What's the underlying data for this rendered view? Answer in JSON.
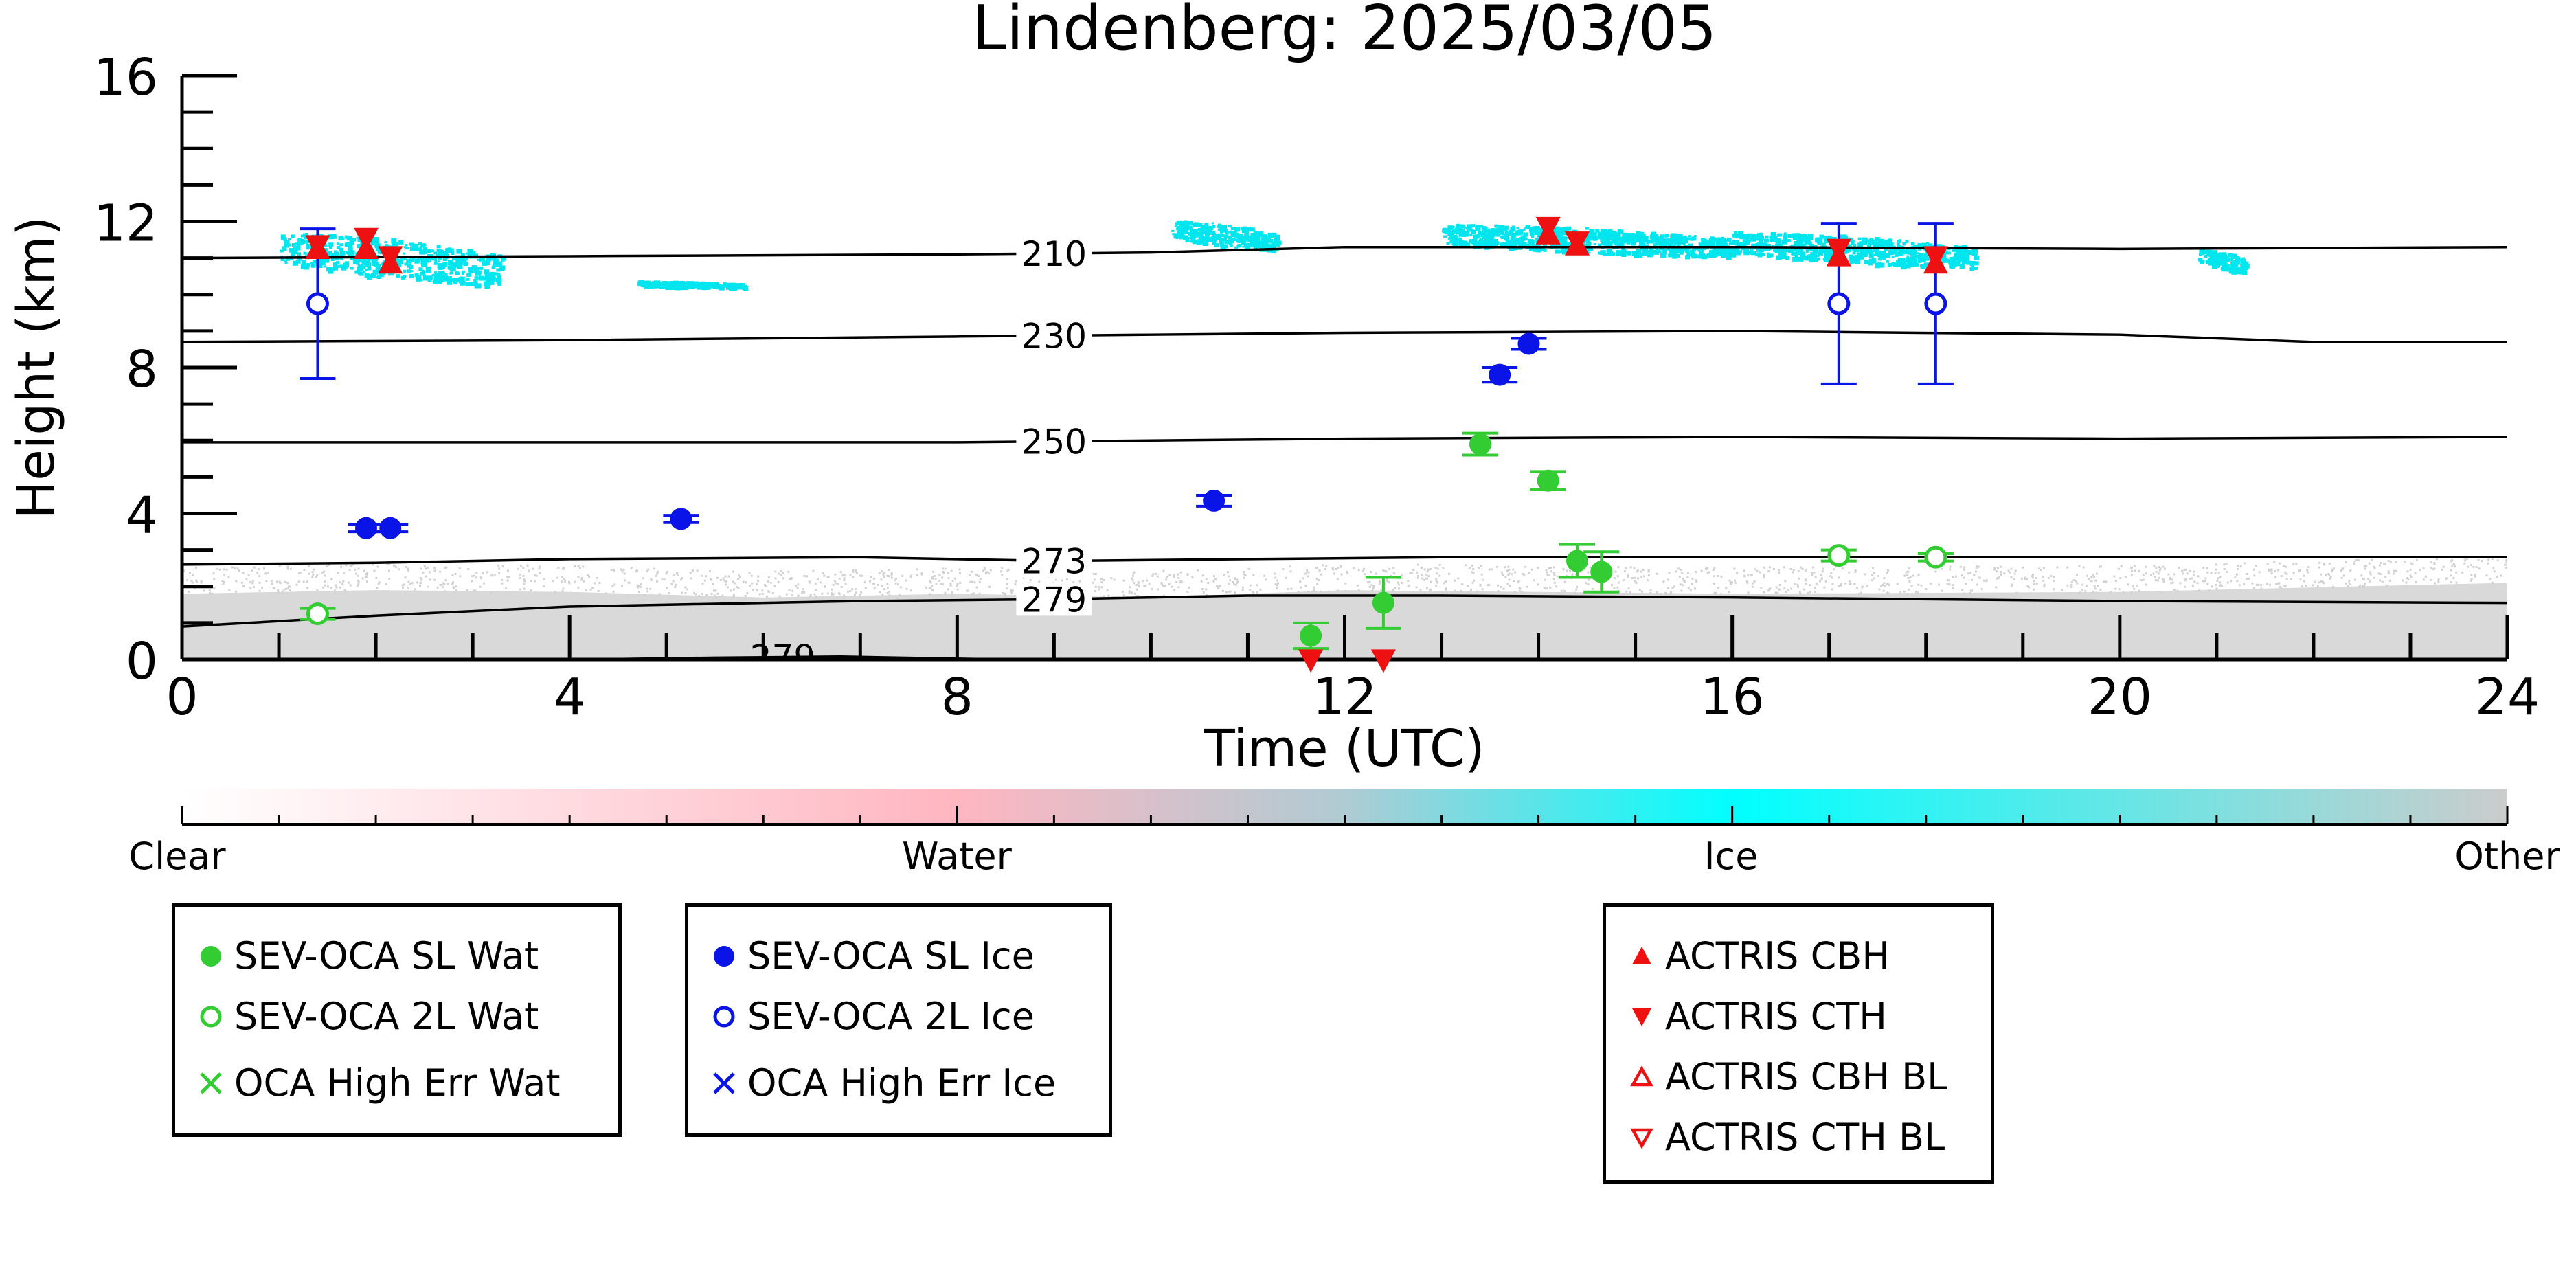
{
  "chart_data": {
    "type": "scatter",
    "title": "Lindenberg: 2025/03/05",
    "xlabel": "Time (UTC)",
    "ylabel": "Height (km)",
    "xlim": [
      0,
      24
    ],
    "ylim": [
      0,
      16
    ],
    "xticks": [
      "0",
      "4",
      "8",
      "12",
      "16",
      "20",
      "24"
    ],
    "yticks": [
      "0",
      "4",
      "8",
      "12",
      "16"
    ],
    "isotherms": [
      {
        "label": "210",
        "points": [
          [
            0,
            11.0
          ],
          [
            4,
            11.05
          ],
          [
            8,
            11.1
          ],
          [
            10,
            11.15
          ],
          [
            12,
            11.3
          ],
          [
            16,
            11.3
          ],
          [
            20,
            11.25
          ],
          [
            24,
            11.3
          ]
        ]
      },
      {
        "label": "230",
        "points": [
          [
            0,
            8.7
          ],
          [
            4,
            8.75
          ],
          [
            8,
            8.85
          ],
          [
            10,
            8.9
          ],
          [
            12,
            8.95
          ],
          [
            16,
            9.0
          ],
          [
            20,
            8.9
          ],
          [
            22,
            8.7
          ],
          [
            24,
            8.7
          ]
        ]
      },
      {
        "label": "250",
        "points": [
          [
            0,
            5.95
          ],
          [
            4,
            5.95
          ],
          [
            8,
            5.95
          ],
          [
            10,
            6.0
          ],
          [
            12,
            6.05
          ],
          [
            16,
            6.1
          ],
          [
            20,
            6.05
          ],
          [
            24,
            6.1
          ]
        ]
      },
      {
        "label": "273",
        "points": [
          [
            0,
            2.6
          ],
          [
            2,
            2.65
          ],
          [
            4,
            2.75
          ],
          [
            7,
            2.8
          ],
          [
            9,
            2.7
          ],
          [
            11,
            2.75
          ],
          [
            13,
            2.8
          ],
          [
            16,
            2.8
          ],
          [
            20,
            2.8
          ],
          [
            24,
            2.8
          ]
        ]
      },
      {
        "label": "279",
        "points": [
          [
            0,
            0.9
          ],
          [
            2,
            1.2
          ],
          [
            4,
            1.45
          ],
          [
            7,
            1.6
          ],
          [
            9,
            1.65
          ],
          [
            11,
            1.75
          ],
          [
            13,
            1.75
          ],
          [
            16,
            1.7
          ],
          [
            20,
            1.6
          ],
          [
            24,
            1.55
          ]
        ]
      },
      {
        "label": "279",
        "points": [
          [
            4.2,
            0.0
          ],
          [
            5.5,
            0.05
          ],
          [
            6.8,
            0.08
          ],
          [
            8.5,
            0.0
          ]
        ]
      }
    ],
    "ice_cloud_regions": [
      {
        "x0": 1.0,
        "x1": 3.3,
        "ytop": 11.8,
        "ybot": 10.2
      },
      {
        "x0": 4.7,
        "x1": 5.8,
        "ytop": 10.4,
        "ybot": 10.2
      },
      {
        "x0": 10.2,
        "x1": 11.3,
        "ytop": 12.1,
        "ybot": 11.2
      },
      {
        "x0": 13.0,
        "x1": 16.0,
        "ytop": 12.0,
        "ybot": 11.0
      },
      {
        "x0": 16.0,
        "x1": 18.5,
        "ytop": 11.8,
        "ybot": 10.7
      },
      {
        "x0": 20.8,
        "x1": 21.3,
        "ytop": 11.3,
        "ybot": 10.6
      }
    ],
    "boundary_layer_top": [
      [
        0,
        2.3
      ],
      [
        2,
        2.4
      ],
      [
        4,
        2.35
      ],
      [
        6,
        2.2
      ],
      [
        8,
        2.3
      ],
      [
        10,
        2.2
      ],
      [
        12,
        2.4
      ],
      [
        16,
        2.3
      ],
      [
        20,
        2.35
      ],
      [
        24,
        2.6
      ]
    ],
    "series": [
      {
        "name": "SEV-OCA SL Wat",
        "marker": "filled-circle",
        "color": "#33cc33",
        "points": [
          {
            "x": 11.65,
            "y": 0.65,
            "yerr": [
              0.35,
              0.35
            ]
          },
          {
            "x": 12.4,
            "y": 1.55,
            "yerr": [
              0.7,
              0.7
            ]
          },
          {
            "x": 13.4,
            "y": 5.9,
            "yerr": [
              0.3,
              0.3
            ]
          },
          {
            "x": 14.1,
            "y": 4.9,
            "yerr": [
              0.25,
              0.25
            ]
          },
          {
            "x": 14.4,
            "y": 2.7,
            "yerr": [
              0.45,
              0.45
            ]
          },
          {
            "x": 14.65,
            "y": 2.4,
            "yerr": [
              0.55,
              0.55
            ]
          }
        ]
      },
      {
        "name": "SEV-OCA 2L Wat",
        "marker": "open-circle",
        "color": "#33cc33",
        "points": [
          {
            "x": 1.4,
            "y": 1.25,
            "yerr": [
              0.15,
              0.15
            ]
          },
          {
            "x": 17.1,
            "y": 2.85,
            "yerr": [
              0.15,
              0.15
            ]
          },
          {
            "x": 18.1,
            "y": 2.8,
            "yerr": [
              0.1,
              0.1
            ]
          }
        ]
      },
      {
        "name": "OCA High Err Wat",
        "marker": "x",
        "color": "#33cc33",
        "points": []
      },
      {
        "name": "SEV-OCA SL Ice",
        "marker": "filled-circle",
        "color": "#0a14e6",
        "points": [
          {
            "x": 1.9,
            "y": 3.6,
            "yerr": [
              0.1,
              0.1
            ]
          },
          {
            "x": 2.15,
            "y": 3.6,
            "yerr": [
              0.1,
              0.1
            ]
          },
          {
            "x": 5.15,
            "y": 3.85,
            "yerr": [
              0.1,
              0.1
            ]
          },
          {
            "x": 10.65,
            "y": 4.35,
            "yerr": [
              0.15,
              0.15
            ]
          },
          {
            "x": 13.6,
            "y": 7.8,
            "yerr": [
              0.2,
              0.2
            ]
          },
          {
            "x": 13.9,
            "y": 8.65,
            "yerr": [
              0.15,
              0.15
            ]
          }
        ]
      },
      {
        "name": "SEV-OCA 2L Ice",
        "marker": "open-circle",
        "color": "#0a14e6",
        "points": [
          {
            "x": 1.4,
            "y": 9.75,
            "yerr": [
              2.05,
              2.05
            ]
          },
          {
            "x": 17.1,
            "y": 9.75,
            "yerr": [
              2.2,
              2.2
            ]
          },
          {
            "x": 18.1,
            "y": 9.75,
            "yerr": [
              2.2,
              2.2
            ]
          }
        ]
      },
      {
        "name": "OCA High Err Ice",
        "marker": "x",
        "color": "#0a14e6",
        "points": []
      },
      {
        "name": "ACTRIS CBH",
        "marker": "triangle-up",
        "color": "#ee1111",
        "points": [
          {
            "x": 1.4,
            "y": 11.2
          },
          {
            "x": 1.9,
            "y": 11.2
          },
          {
            "x": 2.15,
            "y": 10.8
          },
          {
            "x": 14.1,
            "y": 11.6
          },
          {
            "x": 14.4,
            "y": 11.3
          },
          {
            "x": 17.1,
            "y": 11.0
          },
          {
            "x": 18.1,
            "y": 10.8
          }
        ]
      },
      {
        "name": "ACTRIS CTH",
        "marker": "triangle-down",
        "color": "#ee1111",
        "points": [
          {
            "x": 1.4,
            "y": 11.4
          },
          {
            "x": 1.9,
            "y": 11.6
          },
          {
            "x": 2.15,
            "y": 11.1
          },
          {
            "x": 11.65,
            "y": 0.05
          },
          {
            "x": 12.4,
            "y": 0.05
          },
          {
            "x": 14.1,
            "y": 11.9
          },
          {
            "x": 14.4,
            "y": 11.5
          },
          {
            "x": 17.1,
            "y": 11.3
          },
          {
            "x": 18.1,
            "y": 11.1
          }
        ]
      },
      {
        "name": "ACTRIS CBH BL",
        "marker": "open-triangle-up",
        "color": "#ee1111",
        "points": []
      },
      {
        "name": "ACTRIS CTH BL",
        "marker": "open-triangle-down",
        "color": "#ee1111",
        "points": []
      }
    ],
    "colorbar": {
      "labels": [
        "Clear",
        "Water",
        "Ice",
        "Other"
      ],
      "colors": [
        "#ffffff",
        "#ffb6c1",
        "#00ffff",
        "#cccccc"
      ]
    },
    "legends": [
      [
        "SEV-OCA SL Wat",
        "SEV-OCA 2L Wat",
        "OCA High Err Wat"
      ],
      [
        "SEV-OCA SL Ice",
        "SEV-OCA 2L Ice",
        "OCA High Err Ice"
      ],
      [
        "ACTRIS CBH",
        "ACTRIS CTH",
        "ACTRIS CBH BL",
        "ACTRIS CTH BL"
      ]
    ]
  }
}
